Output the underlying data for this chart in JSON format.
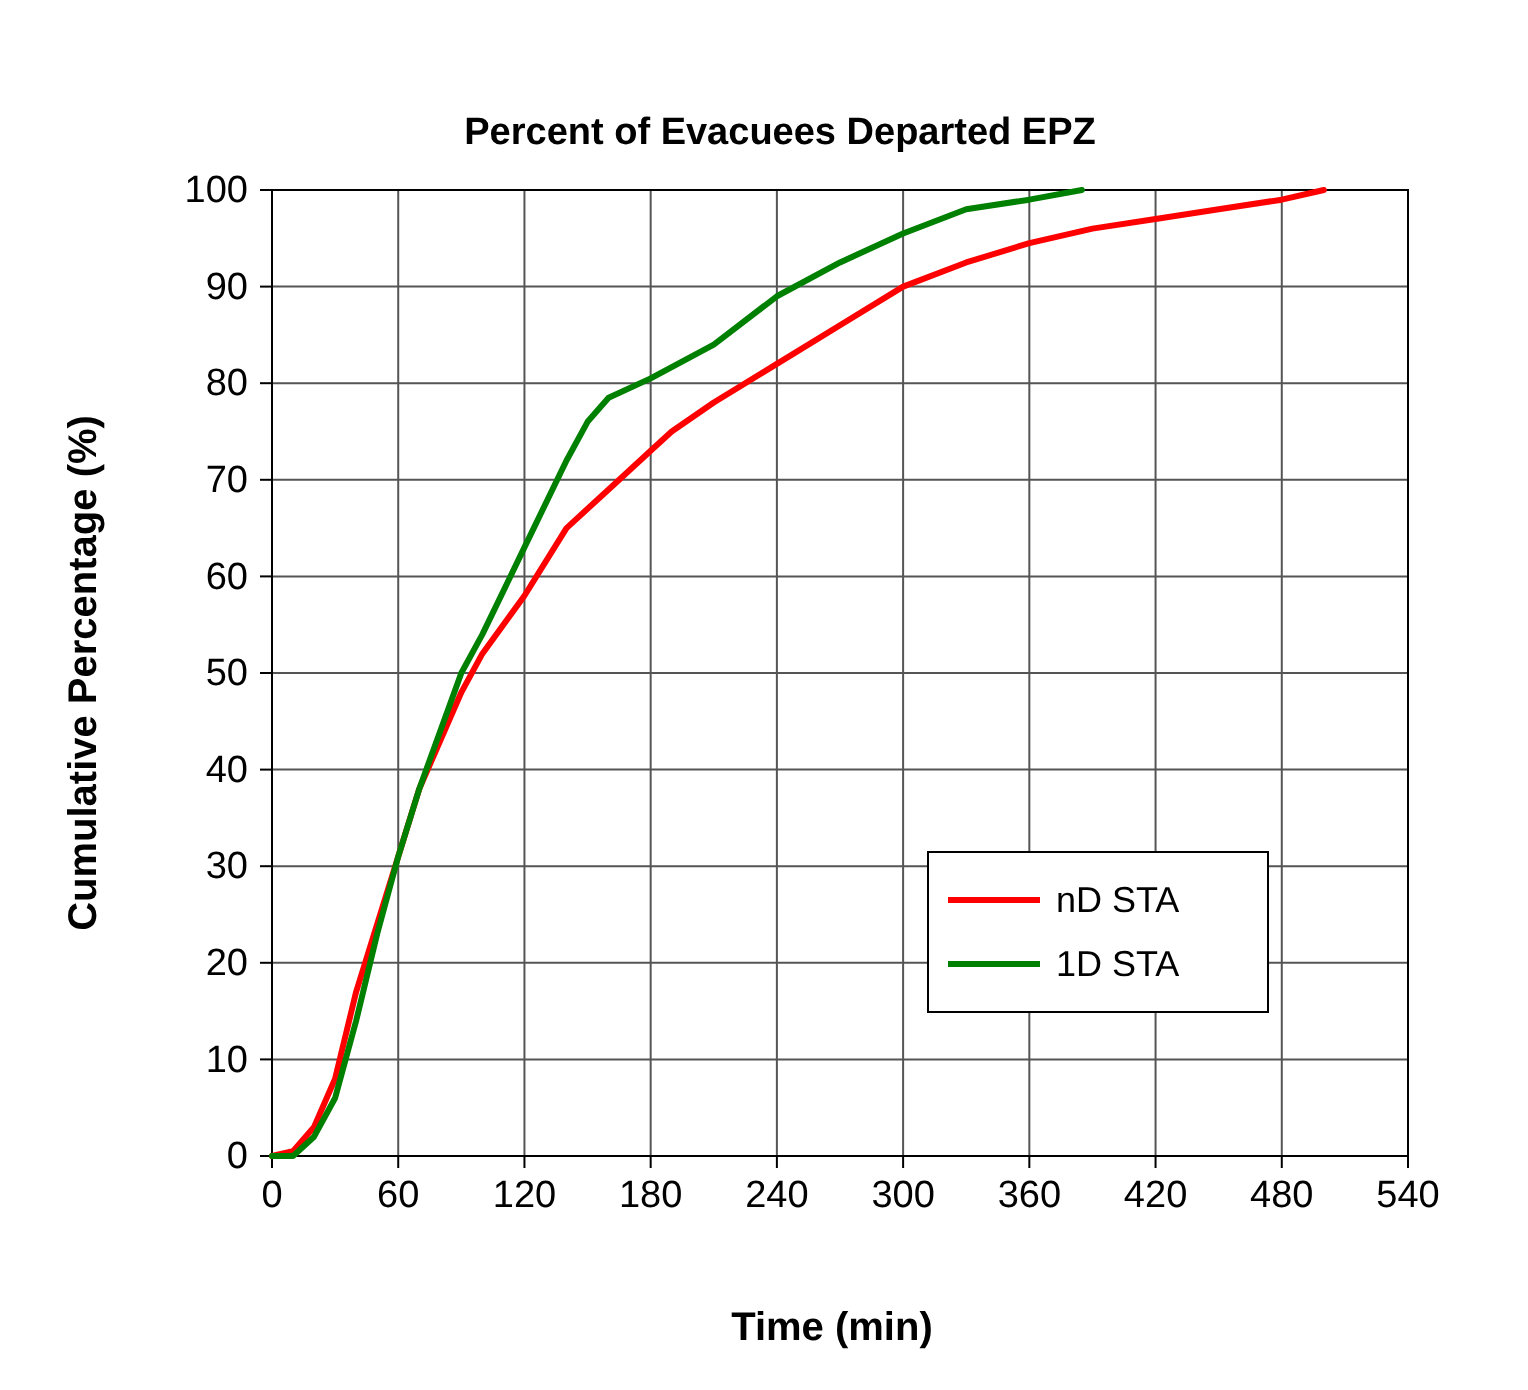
{
  "chart_data": {
    "type": "line",
    "title": "Percent of Evacuees Departed EPZ",
    "xlabel": "Time (min)",
    "ylabel": "Cumulative Percentage (%)",
    "xlim": [
      0,
      540
    ],
    "xticks": [
      0,
      60,
      120,
      180,
      240,
      300,
      360,
      420,
      480,
      540
    ],
    "ylim": [
      0,
      100
    ],
    "yticks": [
      0,
      10,
      20,
      30,
      40,
      50,
      60,
      70,
      80,
      90,
      100
    ],
    "grid": true,
    "legend": "bottom right",
    "marker": "none",
    "line_style": "solid",
    "series": [
      {
        "name": "nD STA",
        "color": "#ff0000",
        "x": [
          0,
          10,
          20,
          30,
          40,
          50,
          60,
          70,
          80,
          90,
          100,
          120,
          140,
          160,
          180,
          190,
          210,
          240,
          270,
          300,
          330,
          360,
          390,
          420,
          450,
          480,
          500
        ],
        "values": [
          0,
          0.5,
          3,
          8,
          17,
          24,
          31,
          38,
          43,
          48,
          52,
          58,
          65,
          69,
          73,
          75,
          78,
          82,
          86,
          90,
          92.5,
          94.5,
          96,
          97,
          98,
          99,
          100
        ]
      },
      {
        "name": "1D STA",
        "color": "#008000",
        "x": [
          0,
          10,
          20,
          30,
          40,
          50,
          60,
          70,
          80,
          90,
          100,
          120,
          140,
          150,
          160,
          180,
          210,
          240,
          270,
          300,
          330,
          360,
          385
        ],
        "values": [
          0,
          0,
          2,
          6,
          14,
          23,
          31,
          38,
          44,
          50,
          54,
          63,
          72,
          76,
          78.5,
          80.5,
          84,
          89,
          92.5,
          95.5,
          98,
          99,
          100
        ]
      }
    ]
  }
}
